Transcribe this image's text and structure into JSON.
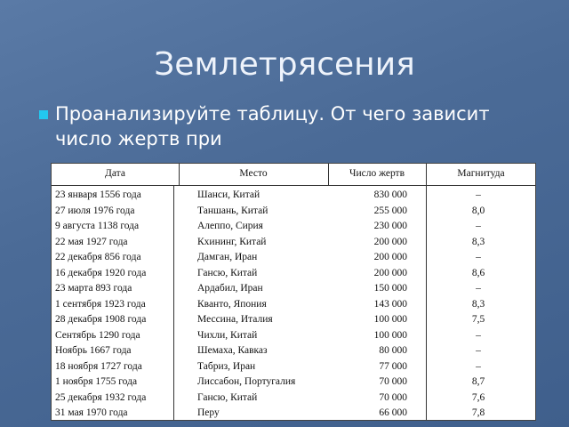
{
  "title": "Землетрясения",
  "bullet_text": "Проанализируйте таблицу.  От чего зависит число жертв при",
  "table": {
    "headers": [
      "Дата",
      "Место",
      "Число жертв",
      "Магнитуда"
    ],
    "rows": [
      [
        "23 января 1556 года",
        "Шанси, Китай",
        "830 000",
        "–"
      ],
      [
        "27 июля 1976 года",
        "Таншань, Китай",
        "255 000",
        "8,0"
      ],
      [
        "9 августа 1138 года",
        "Алеппо, Сирия",
        "230 000",
        "–"
      ],
      [
        "22 мая 1927 года",
        "Кхининг, Китай",
        "200 000",
        "8,3"
      ],
      [
        "22 декабря 856 года",
        "Дамган, Иран",
        "200 000",
        "–"
      ],
      [
        "16 декабря 1920 года",
        "Гансю, Китай",
        "200 000",
        "8,6"
      ],
      [
        "23 марта 893 года",
        "Ардабил, Иран",
        "150 000",
        "–"
      ],
      [
        "1 сентября 1923 года",
        "Кванто, Япония",
        "143 000",
        "8,3"
      ],
      [
        "28 декабря 1908 года",
        "Мессина, Италия",
        "100 000",
        "7,5"
      ],
      [
        "Сентябрь 1290 года",
        "Чихли, Китай",
        "100 000",
        "–"
      ],
      [
        "Ноябрь 1667 года",
        "Шемаха, Кавказ",
        "80 000",
        "–"
      ],
      [
        "18 ноября 1727 года",
        "Табриз, Иран",
        "77 000",
        "–"
      ],
      [
        "1 ноября 1755 года",
        "Лиссабон, Португалия",
        "70 000",
        "8,7"
      ],
      [
        "25 декабря 1932 года",
        "Гансю, Китай",
        "70 000",
        "7,6"
      ],
      [
        "31 мая 1970 года",
        "Перу",
        "66 000",
        "7,8"
      ]
    ]
  }
}
